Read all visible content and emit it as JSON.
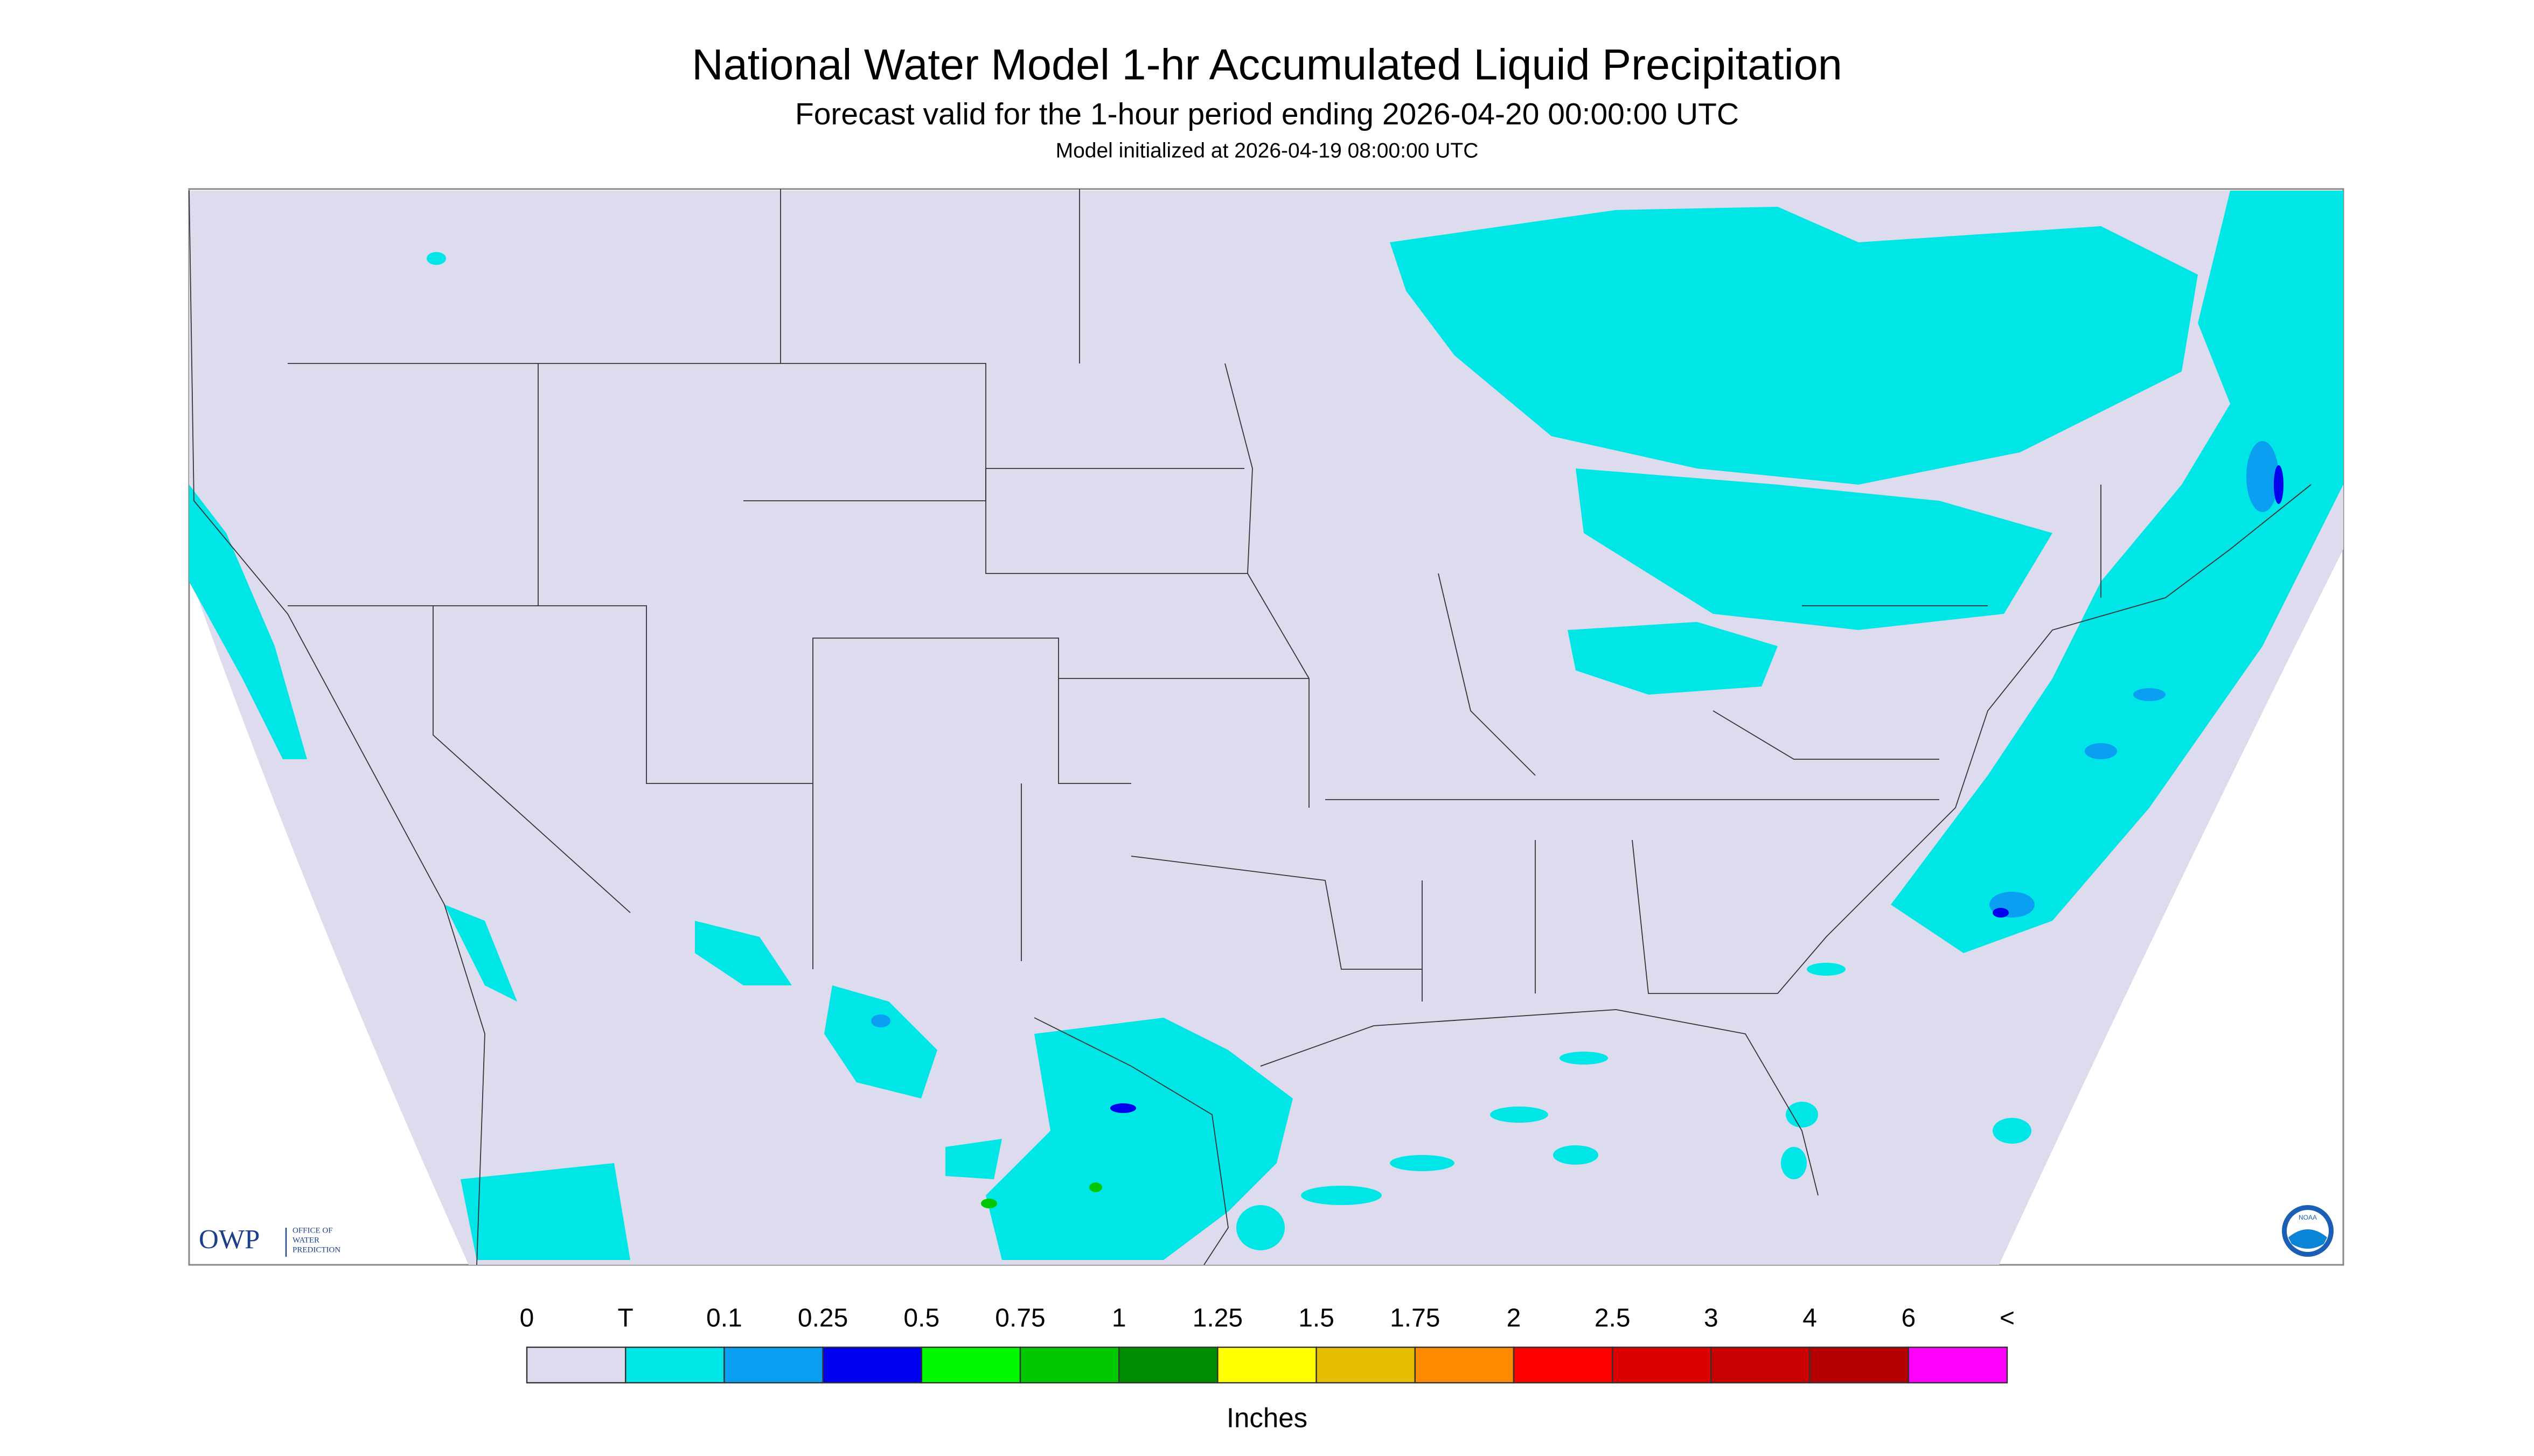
{
  "header": {
    "title": "National Water Model 1-hr Accumulated Liquid Precipitation",
    "subtitle": "Forecast valid for the 1-hour period ending 2026-04-20 00:00:00 UTC",
    "init": "Model initialized at 2026-04-19 08:00:00 UTC"
  },
  "legend": {
    "labels": [
      "0",
      "T",
      "0.1",
      "0.25",
      "0.5",
      "0.75",
      "1",
      "1.25",
      "1.5",
      "1.75",
      "2",
      "2.5",
      "3",
      "4",
      "6",
      "<"
    ],
    "colors": [
      "#dcdcee",
      "#00e6e6",
      "#0a9ff0",
      "#0000f0",
      "#00fa00",
      "#00c800",
      "#008c00",
      "#ffff00",
      "#e6bd00",
      "#ff8c00",
      "#ff0000",
      "#dd0000",
      "#c80000",
      "#b40000",
      "#ff00ff",
      "#9a55c8"
    ],
    "units": "Inches"
  },
  "logos": {
    "owp": "OWP",
    "owp_text": [
      "OFFICE OF",
      "WATER",
      "PREDICTION"
    ],
    "noaa": "NOAA"
  }
}
